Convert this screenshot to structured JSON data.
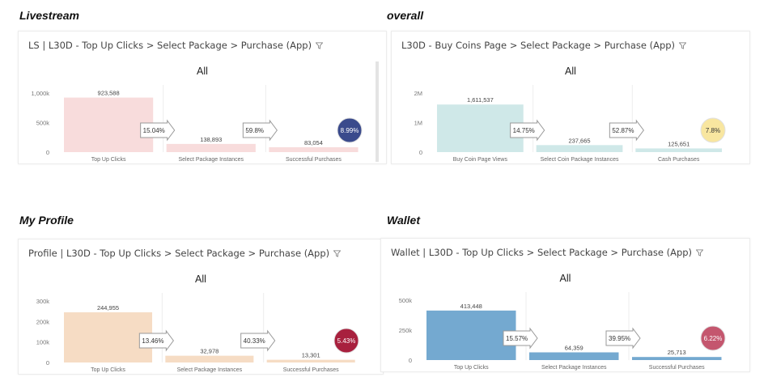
{
  "panels": [
    {
      "section_title": "Livestream",
      "header": "LS | L30D - Top Up Clicks > Select Package > Purchase (App)",
      "chart_data": {
        "type": "bar",
        "title": "All",
        "categories": [
          "Top Up Clicks",
          "Select Package Instances",
          "Successful Purchases"
        ],
        "values": [
          923588,
          138893,
          83054
        ],
        "value_labels": [
          "923,588",
          "138,893",
          "83,054"
        ],
        "yticks": [
          "1,000k",
          "500k",
          "0"
        ],
        "ylim": [
          0,
          1000000
        ],
        "step_rates": [
          "15.04%",
          "59.8%"
        ],
        "overall_rate": "8.99%",
        "bar_color": "#f8dcdc",
        "badge_color": "#3a4a8c",
        "badge_text_color": "#ffffff"
      }
    },
    {
      "section_title": "overall",
      "header": "L30D - Buy Coins Page > Select Package > Purchase (App)",
      "chart_data": {
        "type": "bar",
        "title": "All",
        "categories": [
          "Buy Coin Page Views",
          "Select Coin Package Instances",
          "Cash Purchases"
        ],
        "values": [
          1611537,
          237665,
          125651
        ],
        "value_labels": [
          "1,611,537",
          "237,665",
          "125,651"
        ],
        "yticks": [
          "2M",
          "1M",
          "0"
        ],
        "ylim": [
          0,
          2000000
        ],
        "step_rates": [
          "14.75%",
          "52.87%"
        ],
        "overall_rate": "7.8%",
        "bar_color": "#cfe8e8",
        "badge_color": "#f8e6a0",
        "badge_text_color": "#333333"
      }
    },
    {
      "section_title": "My Profile",
      "header": "Profile | L30D - Top Up Clicks > Select Package > Purchase (App)",
      "chart_data": {
        "type": "bar",
        "title": "All",
        "categories": [
          "Top Up Clicks",
          "Select Package Instances",
          "Successful Purchases"
        ],
        "values": [
          244955,
          32978,
          13301
        ],
        "value_labels": [
          "244,955",
          "32,978",
          "13,301"
        ],
        "yticks": [
          "300k",
          "200k",
          "100k",
          "0"
        ],
        "ylim": [
          0,
          300000
        ],
        "step_rates": [
          "13.46%",
          "40.33%"
        ],
        "overall_rate": "5.43%",
        "bar_color": "#f6dcc4",
        "badge_color": "#a8203e",
        "badge_text_color": "#ffffff"
      }
    },
    {
      "section_title": "Wallet",
      "header": "Wallet | L30D - Top Up Clicks > Select Package > Purchase (App)",
      "chart_data": {
        "type": "bar",
        "title": "All",
        "categories": [
          "Top Up Clicks",
          "Select Package Instances",
          "Successful Purchases"
        ],
        "values": [
          413448,
          64359,
          25713
        ],
        "value_labels": [
          "413,448",
          "64,359",
          "25,713"
        ],
        "yticks": [
          "500k",
          "250k",
          "0"
        ],
        "ylim": [
          0,
          500000
        ],
        "step_rates": [
          "15.57%",
          "39.95%"
        ],
        "overall_rate": "6.22%",
        "bar_color": "#74a9d0",
        "badge_color": "#c4566e",
        "badge_text_color": "#ffffff"
      }
    }
  ]
}
